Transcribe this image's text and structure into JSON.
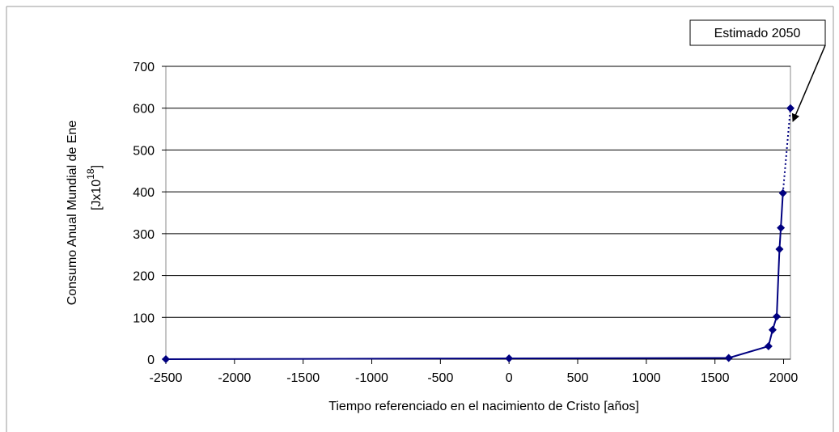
{
  "chart_data": {
    "type": "line",
    "xlabel": "Tiempo  referenciado en el nacimiento de Cristo [años]",
    "ylabel_lines": [
      "Consumo Anual Mundial de Ene",
      "[Jx10",
      "]"
    ],
    "ylabel_superscript": "18",
    "annotation": "Estimado 2050",
    "x": [
      -2500,
      0,
      1600,
      1890,
      1920,
      1950,
      1970,
      1980,
      1995,
      2050
    ],
    "series": [
      {
        "color": "#000080",
        "values": [
          0,
          2,
          3,
          31,
          70,
          102,
          263,
          314,
          397,
          600
        ]
      }
    ],
    "dotted_last_segment": true,
    "xlim": [
      -2500,
      2050
    ],
    "xticks": [
      -2500,
      -2000,
      -1500,
      -1000,
      -500,
      0,
      500,
      1000,
      1500,
      2000
    ],
    "ylim": [
      0,
      700
    ],
    "yticks": [
      0,
      100,
      200,
      300,
      400,
      500,
      600,
      700
    ],
    "grid": true
  }
}
